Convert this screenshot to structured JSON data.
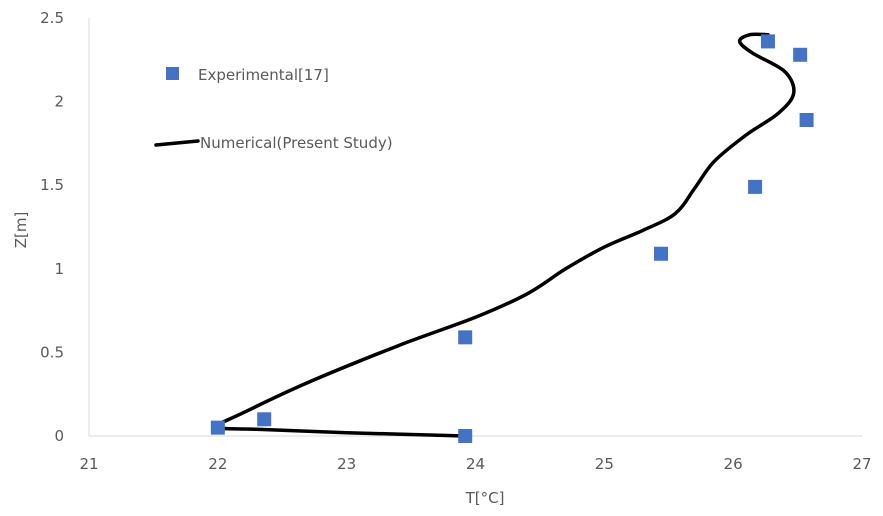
{
  "chart_data": {
    "type": "scatter",
    "xlabel": "T[°C]",
    "ylabel": "Z[m]",
    "xlim": [
      21,
      27
    ],
    "ylim": [
      0,
      2.5
    ],
    "xticks": [
      "21",
      "22",
      "23",
      "24",
      "25",
      "26",
      "27"
    ],
    "yticks": [
      "0",
      "0.5",
      "1",
      "1.5",
      "2",
      "2.5"
    ],
    "grid": false,
    "legend_position": "top-left",
    "series": [
      {
        "name": "Experimental[17]",
        "kind": "markers",
        "color": "#4472C4",
        "points": [
          {
            "x": 23.92,
            "y": 0.0
          },
          {
            "x": 22.0,
            "y": 0.05
          },
          {
            "x": 22.36,
            "y": 0.1
          },
          {
            "x": 23.92,
            "y": 0.59
          },
          {
            "x": 25.44,
            "y": 1.09
          },
          {
            "x": 26.17,
            "y": 1.49
          },
          {
            "x": 26.57,
            "y": 1.89
          },
          {
            "x": 26.52,
            "y": 2.28
          },
          {
            "x": 26.27,
            "y": 2.36
          }
        ]
      },
      {
        "name": "Numerical(Present Study)",
        "kind": "line",
        "color": "#000000",
        "points": [
          {
            "x": 23.92,
            "y": 0.0
          },
          {
            "x": 23.0,
            "y": 0.02
          },
          {
            "x": 22.3,
            "y": 0.04
          },
          {
            "x": 22.0,
            "y": 0.055
          },
          {
            "x": 22.2,
            "y": 0.14
          },
          {
            "x": 22.7,
            "y": 0.32
          },
          {
            "x": 23.4,
            "y": 0.54
          },
          {
            "x": 24.0,
            "y": 0.71
          },
          {
            "x": 24.4,
            "y": 0.85
          },
          {
            "x": 24.7,
            "y": 1.0
          },
          {
            "x": 25.0,
            "y": 1.13
          },
          {
            "x": 25.3,
            "y": 1.23
          },
          {
            "x": 25.55,
            "y": 1.33
          },
          {
            "x": 25.7,
            "y": 1.48
          },
          {
            "x": 25.85,
            "y": 1.64
          },
          {
            "x": 26.1,
            "y": 1.8
          },
          {
            "x": 26.35,
            "y": 1.93
          },
          {
            "x": 26.47,
            "y": 2.05
          },
          {
            "x": 26.4,
            "y": 2.18
          },
          {
            "x": 26.15,
            "y": 2.29
          },
          {
            "x": 26.05,
            "y": 2.36
          },
          {
            "x": 26.13,
            "y": 2.4
          },
          {
            "x": 26.27,
            "y": 2.4
          }
        ]
      }
    ]
  }
}
